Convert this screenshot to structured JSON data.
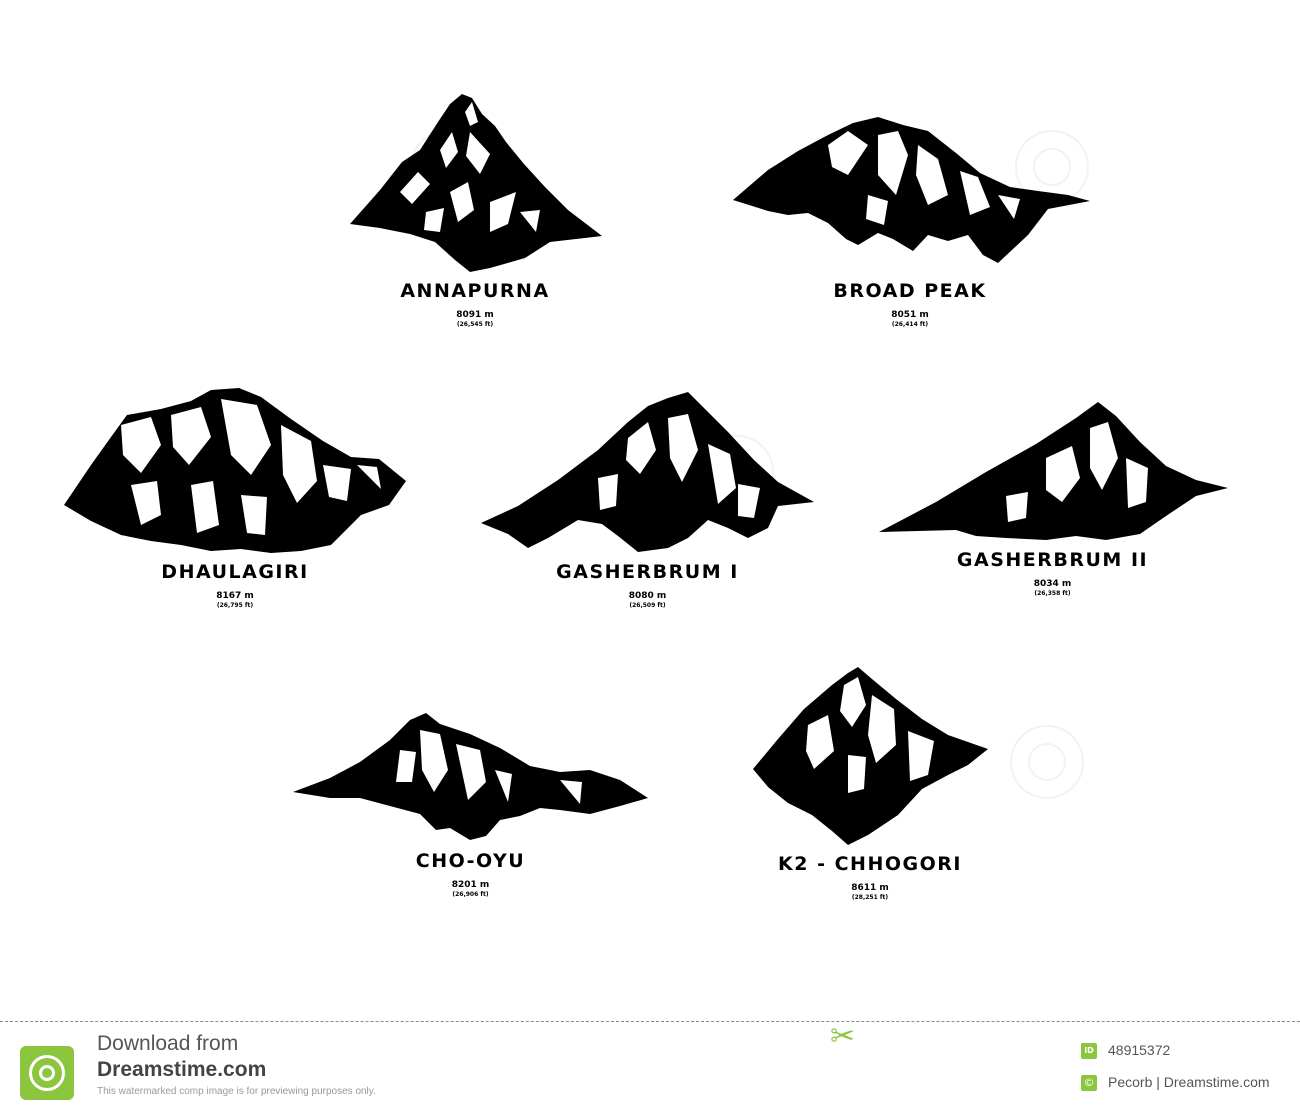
{
  "peaks": [
    {
      "name": "ANNAPURNA",
      "height_m": "8091 m",
      "height_ft": "(26,545 ft)"
    },
    {
      "name": "BROAD PEAK",
      "height_m": "8051 m",
      "height_ft": "(26,414 ft)"
    },
    {
      "name": "DHAULAGIRI",
      "height_m": "8167 m",
      "height_ft": "(26,795 ft)"
    },
    {
      "name": "GASHERBRUM I",
      "height_m": "8080 m",
      "height_ft": "(26,509 ft)"
    },
    {
      "name": "GASHERBRUM II",
      "height_m": "8034 m",
      "height_ft": "(26,358 ft)"
    },
    {
      "name": "CHO-OYU",
      "height_m": "8201 m",
      "height_ft": "(26,906 ft)"
    },
    {
      "name": "K2 - CHHOGORI",
      "height_m": "8611 m",
      "height_ft": "(28,251 ft)"
    }
  ],
  "footer": {
    "line1": "Download from",
    "line2": "Dreamstime.com",
    "note": "This watermarked comp image is for previewing purposes only.",
    "id_label": "ID",
    "id_value": "48915372",
    "credit": "Pecorb | Dreamstime.com",
    "accent": "#8cc63f"
  }
}
